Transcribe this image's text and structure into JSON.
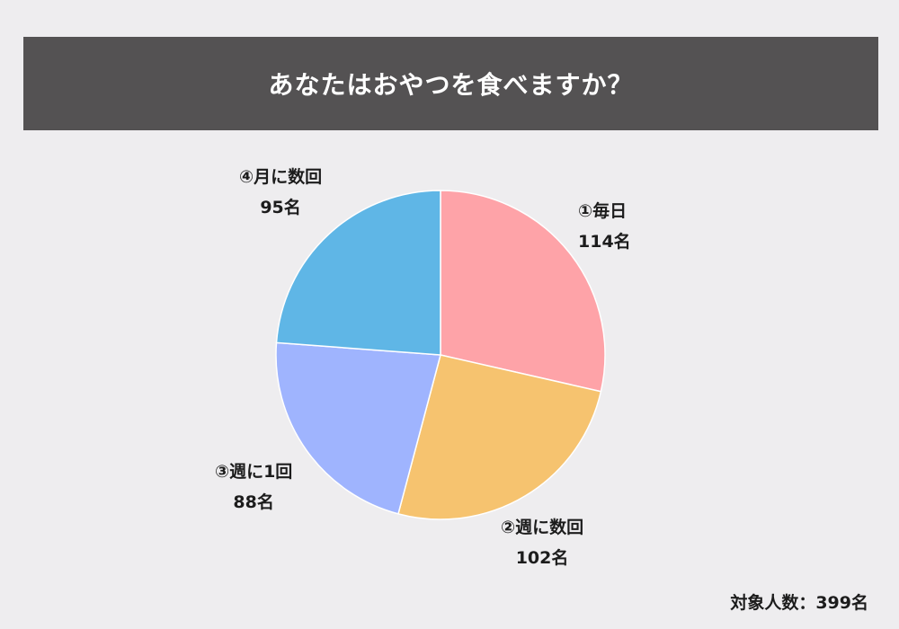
{
  "title": "あなたはおやつを食べますか？",
  "footer": "対象人数：399名",
  "chart_data": {
    "type": "pie",
    "title": "あなたはおやつを食べますか？",
    "total": 399,
    "slices": [
      {
        "label": "①毎日",
        "value": 114,
        "value_label": "114名",
        "color": "#fea3a8"
      },
      {
        "label": "②週に数回",
        "value": 102,
        "value_label": "102名",
        "color": "#f6c36f"
      },
      {
        "label": "③週に1回",
        "value": 88,
        "value_label": "88名",
        "color": "#9fb4fe"
      },
      {
        "label": "④月に数回",
        "value": 95,
        "value_label": "95名",
        "color": "#5fb6e6"
      }
    ]
  }
}
